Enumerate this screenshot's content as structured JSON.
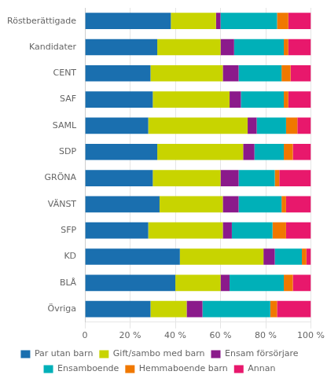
{
  "chart_data": {
    "type": "bar",
    "orientation": "horizontal",
    "stacked": true,
    "grid": true,
    "legend": "bottom",
    "categories": [
      "Röstberättigade",
      "Kandidater",
      "CENT",
      "SAF",
      "SAML",
      "SDP",
      "GRÖNA",
      "VÄNST",
      "SFP",
      "KD",
      "BLÅ",
      "Övriga"
    ],
    "series": [
      {
        "name": "Par utan barn",
        "color": "#1a6faf",
        "values": [
          38,
          32,
          29,
          30,
          28,
          32,
          30,
          33,
          28,
          42,
          40,
          29
        ]
      },
      {
        "name": "Gift/sambo med barn",
        "color": "#c8d400",
        "values": [
          20,
          28,
          32,
          34,
          44,
          38,
          30,
          28,
          33,
          37,
          20,
          16
        ]
      },
      {
        "name": "Ensam försörjare",
        "color": "#8b1a8b",
        "values": [
          2,
          6,
          7,
          5,
          4,
          5,
          8,
          7,
          4,
          5,
          4,
          7
        ]
      },
      {
        "name": "Ensamboende",
        "color": "#00b0b8",
        "values": [
          25,
          22,
          19,
          19,
          13,
          13,
          16,
          19,
          18,
          12,
          24,
          30
        ]
      },
      {
        "name": "Hemmaboende barn",
        "color": "#f07800",
        "values": [
          5,
          2,
          4,
          2,
          5,
          4,
          2,
          2,
          6,
          2,
          4,
          3
        ]
      },
      {
        "name": "Annan",
        "color": "#e8186c",
        "values": [
          10,
          10,
          9,
          10,
          6,
          8,
          14,
          11,
          11,
          2,
          8,
          15
        ]
      }
    ],
    "xlim": [
      0,
      100
    ],
    "xticks": [
      0,
      {
        "value": 20,
        "label": "20 %"
      },
      {
        "value": 40,
        "label": "40 %"
      },
      {
        "value": 60,
        "label": "60 %"
      },
      {
        "value": 80,
        "label": "80 %"
      },
      {
        "value": 100,
        "label": "100 %"
      }
    ]
  }
}
